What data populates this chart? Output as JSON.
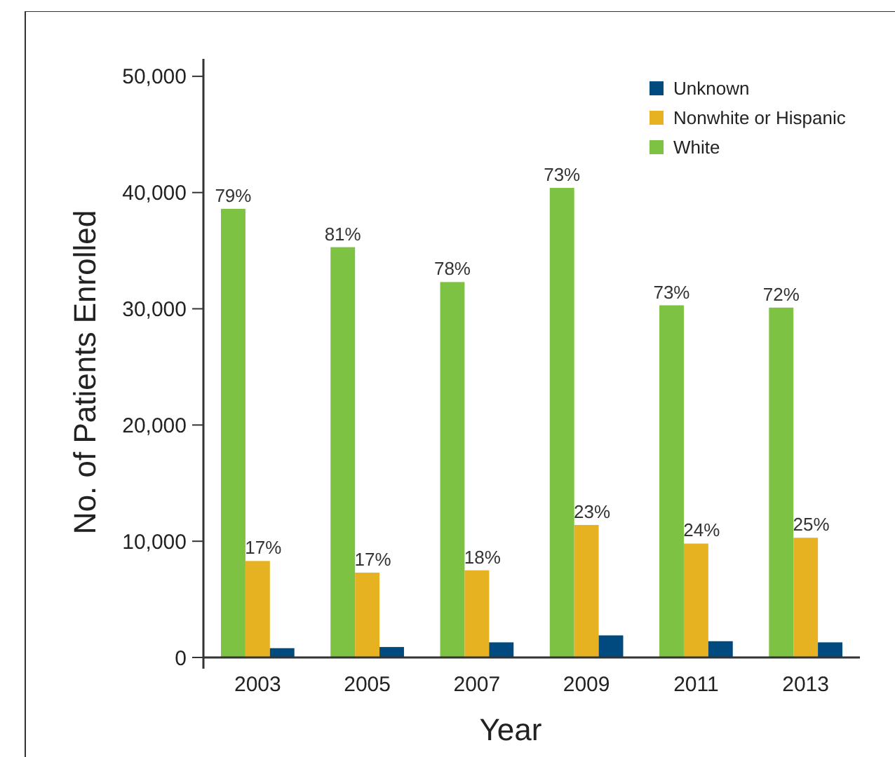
{
  "chart_data": {
    "type": "bar",
    "xlabel": "Year",
    "ylabel": "No. of Patients Enrolled",
    "categories": [
      "2003",
      "2005",
      "2007",
      "2009",
      "2011",
      "2013"
    ],
    "series": [
      {
        "name": "White",
        "color": "#7dc242",
        "values": [
          38600,
          35300,
          32300,
          40400,
          30300,
          30100
        ]
      },
      {
        "name": "Nonwhite or Hispanic",
        "color": "#e6b222",
        "values": [
          8300,
          7300,
          7500,
          11400,
          9800,
          10300
        ]
      },
      {
        "name": "Unknown",
        "color": "#004a80",
        "values": [
          800,
          900,
          1300,
          1900,
          1400,
          1300
        ]
      }
    ],
    "annotations": [
      "79%",
      "81%",
      "78%",
      "73%",
      "73%",
      "72%",
      {
        "text": "17%",
        "x": "2003",
        "y": 8300
      },
      {
        "text": "17%",
        "x": "2005",
        "y": 7300
      },
      {
        "text": "18%",
        "x": "2007",
        "y": 7500
      },
      {
        "text": "23%",
        "x": "2009",
        "y": 11400
      },
      {
        "text": "24%",
        "x": "2011",
        "y": 9800
      },
      {
        "text": "25%",
        "x": "2013",
        "y": 10300
      }
    ],
    "ylim": [
      0,
      51500
    ],
    "yticks": [
      0,
      {
        "value": 10000,
        "label": "10,000"
      },
      {
        "value": 20000,
        "label": "20,000"
      },
      {
        "value": 30000,
        "label": "30,000"
      },
      {
        "value": 40000,
        "label": "40,000"
      },
      {
        "value": 50000,
        "label": "50,000"
      }
    ],
    "grid": false,
    "legend": "top right"
  }
}
